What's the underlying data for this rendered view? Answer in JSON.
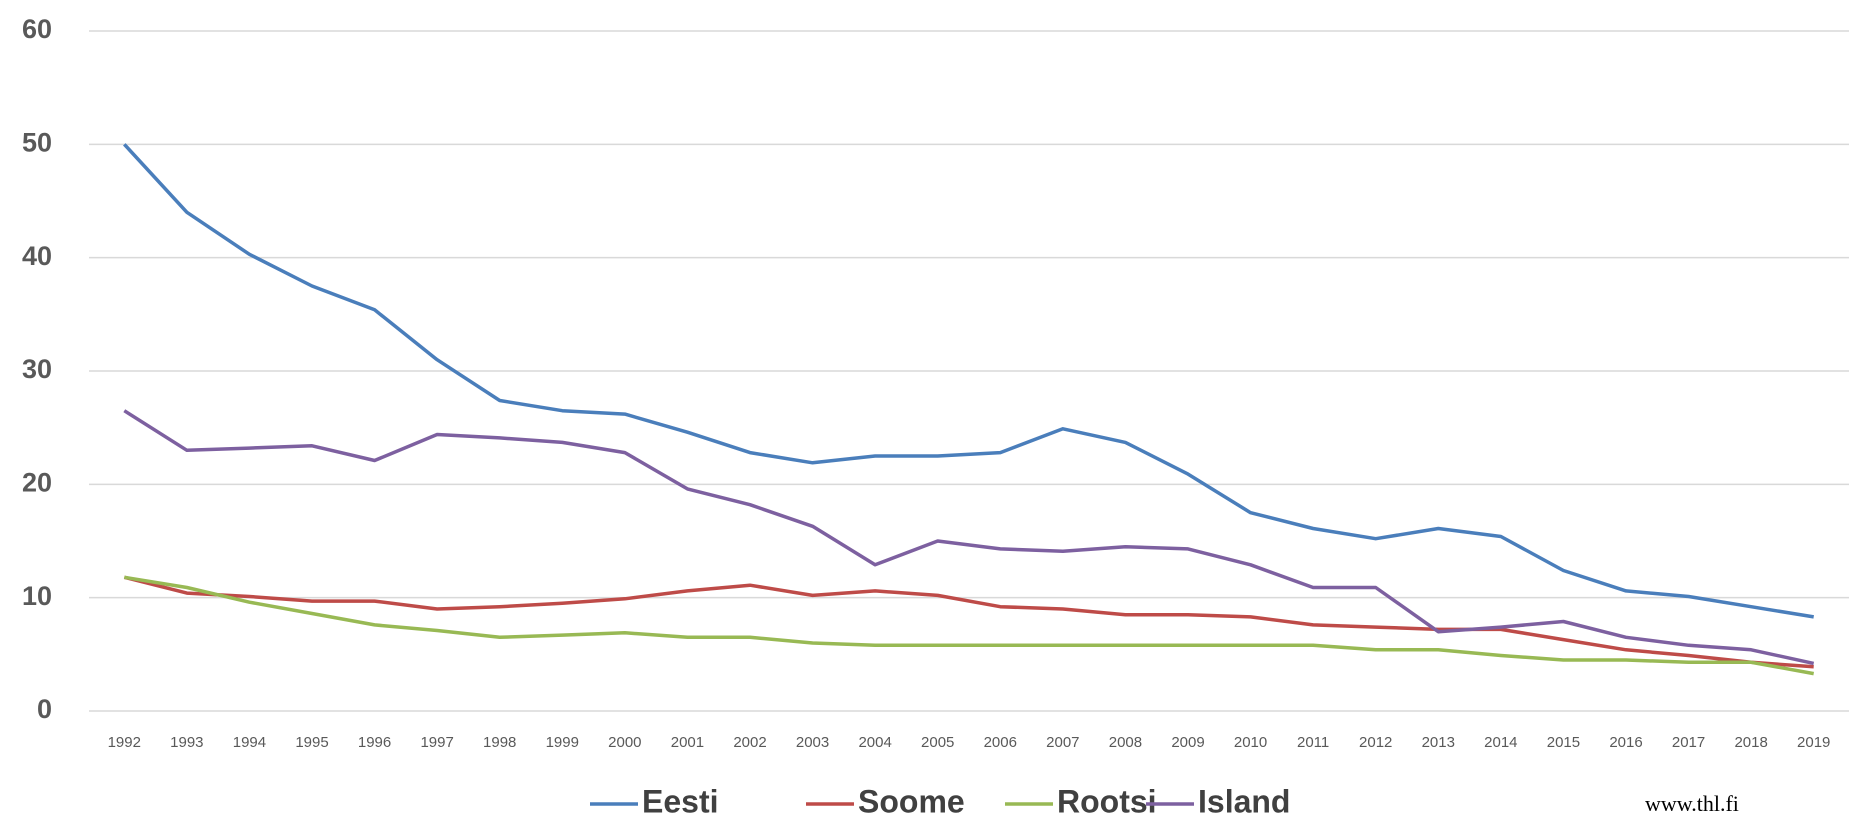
{
  "chart_data": {
    "type": "line",
    "categories": [
      "1992",
      "1993",
      "1994",
      "1995",
      "1996",
      "1997",
      "1998",
      "1999",
      "2000",
      "2001",
      "2002",
      "2003",
      "2004",
      "2005",
      "2006",
      "2007",
      "2008",
      "2009",
      "2010",
      "2011",
      "2012",
      "2013",
      "2014",
      "2015",
      "2016",
      "2017",
      "2018",
      "2019"
    ],
    "series": [
      {
        "name": "Eesti",
        "color": "#4a7ebb",
        "values": [
          50,
          44,
          40.3,
          37.5,
          35.4,
          31,
          27.4,
          26.5,
          26.2,
          24.6,
          22.8,
          21.9,
          22.5,
          22.5,
          22.8,
          24.9,
          23.7,
          20.9,
          17.5,
          16.1,
          15.2,
          16.1,
          15.4,
          12.4,
          10.6,
          10.1,
          9.2,
          8.3
        ]
      },
      {
        "name": "Soome",
        "color": "#be4b48",
        "values": [
          11.8,
          10.4,
          10.1,
          9.7,
          9.7,
          9.0,
          9.2,
          9.5,
          9.9,
          10.6,
          11.1,
          10.2,
          10.6,
          10.2,
          9.2,
          9.0,
          8.5,
          8.5,
          8.3,
          7.6,
          7.4,
          7.2,
          7.2,
          6.3,
          5.4,
          4.9,
          4.3,
          3.9
        ]
      },
      {
        "name": "Rootsi",
        "color": "#98b954",
        "values": [
          11.8,
          10.9,
          9.6,
          8.6,
          7.6,
          7.1,
          6.5,
          6.7,
          6.9,
          6.5,
          6.5,
          6.0,
          5.8,
          5.8,
          5.8,
          5.8,
          5.8,
          5.8,
          5.8,
          5.8,
          5.4,
          5.4,
          4.9,
          4.5,
          4.5,
          4.3,
          4.3,
          3.3
        ]
      },
      {
        "name": "Island",
        "color": "#7d60a0",
        "values": [
          26.5,
          23.0,
          23.2,
          23.4,
          22.1,
          24.4,
          24.1,
          23.7,
          22.8,
          19.6,
          18.2,
          16.3,
          12.9,
          15.0,
          14.3,
          14.1,
          14.5,
          14.3,
          12.9,
          10.9,
          10.9,
          7.0,
          7.4,
          7.9,
          6.5,
          5.8,
          5.4,
          4.2
        ]
      }
    ],
    "ylim": [
      0,
      60
    ],
    "yticks": [
      0,
      10,
      20,
      30,
      40,
      50,
      60
    ],
    "grid": true,
    "legend": "bottom",
    "annotation": "www.thl.fi"
  }
}
